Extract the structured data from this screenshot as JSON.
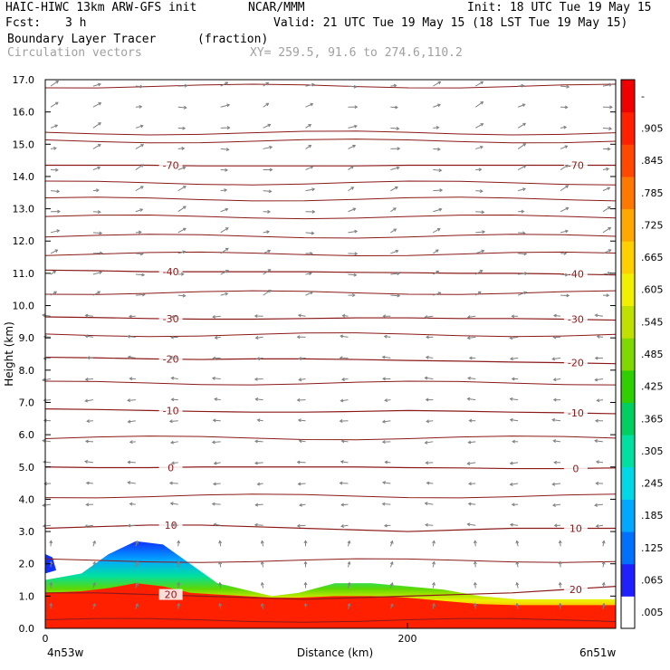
{
  "header": {
    "title_left": "HAIC-HIWC 13km ARW-GFS init",
    "title_mid": "NCAR/MMM",
    "init": "Init: 18 UTC Tue 19 May 15",
    "fcst": "Fcst:",
    "fcst_value": "3 h",
    "valid": "Valid: 21 UTC Tue 19 May 15 (18 LST Tue 19 May 15)",
    "field": "Boundary Layer Tracer",
    "field_units": "(fraction)",
    "vectors": "Circulation vectors",
    "xy": "XY= 259.5, 91.6 to 274.6,110.2"
  },
  "colors": {
    "contour": "#8b1a1a",
    "vector": "#808080",
    "colorbar": [
      "#ffffff",
      "#2020ff",
      "#0070ff",
      "#00a8ff",
      "#00d8e8",
      "#00e0a0",
      "#00d060",
      "#30d000",
      "#80d800",
      "#c0e000",
      "#f0f000",
      "#ffd000",
      "#ffa800",
      "#ff7800",
      "#ff4800",
      "#ff2000",
      "#f00000"
    ]
  },
  "chart_data": {
    "type": "cross-section",
    "xlabel": "Distance (km)",
    "ylabel": "Height (km)",
    "xlim": [
      0,
      315
    ],
    "ylim": [
      0,
      17
    ],
    "x_ticks": [
      0,
      200
    ],
    "x_end_labels": [
      "4n53w",
      "6n51w"
    ],
    "y_ticks": [
      "0.0",
      "1.0",
      "2.0",
      "3.0",
      "4.0",
      "5.0",
      "6.0",
      "7.0",
      "8.0",
      "9.0",
      "10.0",
      "11.0",
      "12.0",
      "13.0",
      "14.0",
      "15.0",
      "16.0",
      "17.0"
    ],
    "colorbar_labels": [
      ".005",
      ".065",
      ".125",
      ".185",
      ".245",
      ".305",
      ".365",
      ".425",
      ".485",
      ".545",
      ".605",
      ".665",
      ".725",
      ".785",
      ".845",
      ".905",
      "-"
    ],
    "tracer_shading": {
      "x": [
        0,
        20,
        35,
        50,
        65,
        80,
        95,
        110,
        125,
        140,
        160,
        180,
        200,
        220,
        240,
        260,
        280,
        300,
        315
      ],
      "top_height": [
        1.5,
        1.7,
        2.3,
        2.7,
        2.6,
        2.0,
        1.4,
        1.2,
        1.0,
        1.1,
        1.4,
        1.4,
        1.3,
        1.2,
        1.0,
        0.9,
        0.9,
        0.9,
        0.9
      ],
      "core_height": [
        1.1,
        1.15,
        1.25,
        1.4,
        1.3,
        1.1,
        1.05,
        1.0,
        0.95,
        0.95,
        1.0,
        1.0,
        0.95,
        0.85,
        0.75,
        0.72,
        0.72,
        0.72,
        0.72
      ]
    },
    "temperature_contours": [
      {
        "label": "20",
        "heights": [
          1.1,
          1.1,
          1.05,
          1.0,
          0.95,
          0.9,
          0.95,
          1.0,
          1.05,
          1.1,
          1.2,
          1.3
        ]
      },
      {
        "label": "10",
        "heights": [
          3.1,
          3.15,
          3.2,
          3.2,
          3.15,
          3.1,
          3.05,
          3.0,
          3.05,
          3.1,
          3.1,
          3.1
        ]
      },
      {
        "label": "0",
        "heights": [
          5.0,
          4.98,
          4.98,
          5.0,
          5.0,
          5.0,
          5.0,
          4.98,
          4.97,
          4.95,
          4.95,
          4.97
        ]
      },
      {
        "label": "-10",
        "heights": [
          6.8,
          6.78,
          6.75,
          6.72,
          6.7,
          6.7,
          6.72,
          6.75,
          6.73,
          6.7,
          6.68,
          6.65
        ]
      },
      {
        "label": "-20",
        "heights": [
          8.4,
          8.38,
          8.35,
          8.33,
          8.35,
          8.35,
          8.33,
          8.3,
          8.28,
          8.25,
          8.23,
          8.2
        ]
      },
      {
        "label": "-30",
        "heights": [
          9.65,
          9.63,
          9.6,
          9.58,
          9.58,
          9.6,
          9.62,
          9.62,
          9.6,
          9.6,
          9.58,
          9.55
        ]
      },
      {
        "label": "-40",
        "heights": [
          11.1,
          11.08,
          11.05,
          11.05,
          11.05,
          11.05,
          11.03,
          11.02,
          11.0,
          11.0,
          10.98,
          10.95
        ]
      },
      {
        "label": "-70",
        "heights": [
          14.35,
          14.35,
          14.35,
          14.33,
          14.33,
          14.33,
          14.33,
          14.35,
          14.35,
          14.35,
          14.35,
          14.35
        ]
      }
    ],
    "other_contour_heights": [
      0.25,
      2.1,
      4.1,
      5.9,
      7.6,
      9.1,
      10.4,
      11.6,
      12.15,
      12.75,
      13.3,
      13.8,
      15.1,
      15.35,
      16.8
    ]
  }
}
